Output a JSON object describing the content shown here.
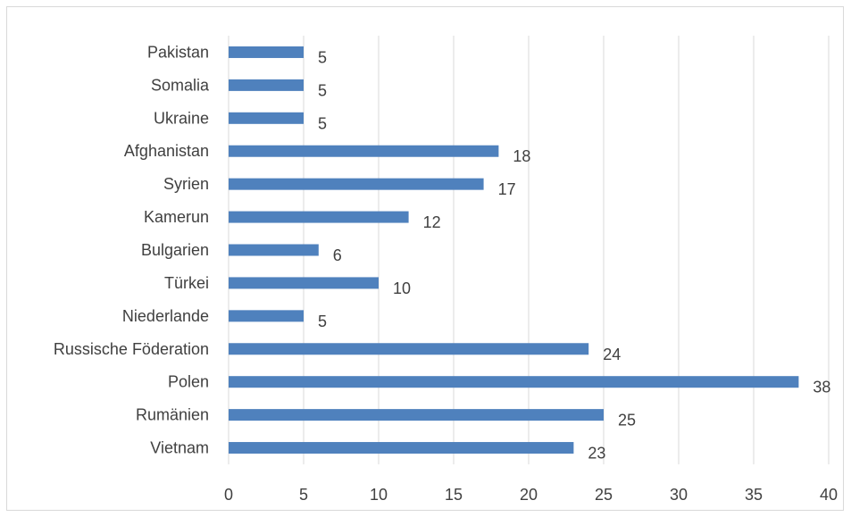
{
  "chart_data": {
    "type": "bar",
    "orientation": "horizontal",
    "categories": [
      "Pakistan",
      "Somalia",
      "Ukraine",
      "Afghanistan",
      "Syrien",
      "Kamerun",
      "Bulgarien",
      "Türkei",
      "Niederlande",
      "Russische Föderation",
      "Polen",
      "Rumänien",
      "Vietnam"
    ],
    "values": [
      5,
      5,
      5,
      18,
      17,
      12,
      6,
      10,
      5,
      24,
      38,
      25,
      23
    ],
    "title": "",
    "xlabel": "",
    "ylabel": "",
    "xlim": [
      0,
      40
    ],
    "x_ticks": [
      "0",
      "5",
      "10",
      "15",
      "20",
      "25",
      "30",
      "35",
      "40"
    ],
    "grid": "vertical",
    "legend": "none",
    "data_labels": true,
    "bar_color": "#4f81bd",
    "grid_color": "#d9d9d9",
    "text_color": "#404040"
  }
}
